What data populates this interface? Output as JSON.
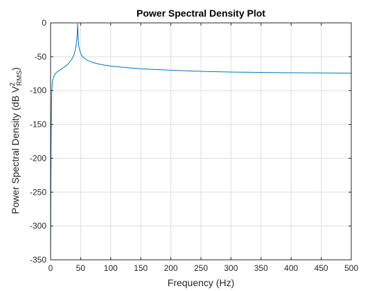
{
  "chart_data": {
    "type": "line",
    "title": "Power Spectral Density Plot",
    "xlabel": "Frequency (Hz)",
    "ylabel": {
      "text": "Power Spectral Density (dB V",
      "sup": "2",
      "sub": "RMS",
      "close": ")"
    },
    "xlim": [
      0,
      500
    ],
    "ylim": [
      -350,
      0
    ],
    "xticks": [
      "0",
      "50",
      "100",
      "150",
      "200",
      "250",
      "300",
      "350",
      "400",
      "450",
      "500"
    ],
    "yticks": [
      "0",
      "-50",
      "-100",
      "-150",
      "-200",
      "-250",
      "-300",
      "-350"
    ],
    "grid": true,
    "series_color": "#0072bd",
    "series": [
      {
        "x": [
          0,
          0.5,
          1,
          2,
          3,
          5,
          8,
          10,
          15,
          20,
          25,
          30,
          35,
          38,
          40,
          42,
          43,
          44,
          44.5,
          45,
          45.5,
          46,
          47,
          48,
          50,
          52,
          55,
          60,
          70,
          80,
          90,
          100,
          125,
          150,
          175,
          200,
          250,
          300,
          350,
          400,
          450,
          500
        ],
        "y": [
          -350,
          -250,
          -160,
          -100,
          -87,
          -80,
          -75,
          -73,
          -70,
          -67,
          -64,
          -60,
          -54,
          -49,
          -44,
          -36,
          -30,
          -20,
          -12,
          -1,
          -12,
          -25,
          -34,
          -39,
          -45,
          -48.5,
          -51.5,
          -55,
          -58.5,
          -60.8,
          -62.5,
          -63.8,
          -66,
          -67.8,
          -69,
          -70,
          -71.6,
          -72.6,
          -73.2,
          -73.7,
          -74,
          -74.3
        ]
      }
    ]
  }
}
